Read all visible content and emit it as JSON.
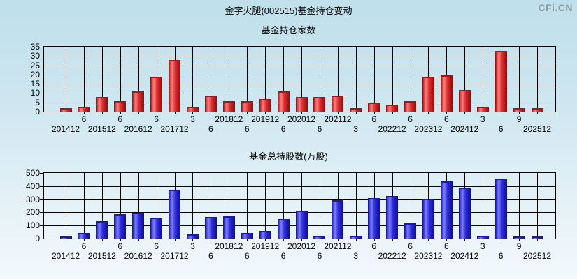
{
  "page": {
    "title": "金字火腿(002515)基金持仓变动",
    "watermark": "CFi.CN"
  },
  "chart_data": [
    {
      "type": "bar",
      "title": "基金持仓家数",
      "ylabel": "基金持仓家数",
      "ylim": [
        0,
        35
      ],
      "yticks": [
        0,
        5,
        10,
        15,
        20,
        25,
        30,
        35
      ],
      "grid": true,
      "bar_color_theme": "red",
      "bar_color": "#e03030",
      "categories": [
        "201412",
        "201506",
        "201512",
        "201606",
        "201612",
        "201706",
        "201712",
        "201803",
        "201806",
        "201812",
        "201906",
        "201912",
        "202006",
        "202012",
        "202106",
        "202112",
        "202203",
        "202206",
        "202212",
        "202306",
        "202312",
        "202406",
        "202412",
        "202503",
        "202506",
        "202509",
        "202512"
      ],
      "x_tick_display": [
        "201412",
        "6",
        "201512",
        "6",
        "201612",
        "6",
        "201712",
        "3",
        "6",
        "201812",
        "6",
        "201912",
        "6",
        "202012",
        "6",
        "202112",
        "3",
        "6",
        "202212",
        "6",
        "202312",
        "6",
        "202412",
        "3",
        "6",
        "9",
        "202512"
      ],
      "x_tick_row": [
        "lower",
        "upper",
        "lower",
        "upper",
        "lower",
        "upper",
        "lower",
        "upper",
        "lower",
        "upper",
        "lower",
        "upper",
        "lower",
        "upper",
        "lower",
        "upper",
        "lower",
        "upper",
        "lower",
        "upper",
        "lower",
        "upper",
        "lower",
        "upper",
        "lower",
        "upper",
        "lower"
      ],
      "values": [
        1,
        2,
        7,
        5,
        10,
        18,
        27,
        2,
        8,
        5,
        5,
        6,
        10,
        7,
        7,
        8,
        1,
        4,
        3,
        5,
        18,
        19,
        11,
        2,
        32,
        1,
        1
      ]
    },
    {
      "type": "bar",
      "title": "基金总持股数(万股)",
      "ylabel": "基金总持股数(万股)",
      "ylim": [
        0,
        500
      ],
      "yticks": [
        0,
        100,
        200,
        300,
        400,
        500
      ],
      "grid": true,
      "bar_color_theme": "blue",
      "bar_color": "#3030e0",
      "categories": [
        "201412",
        "201506",
        "201512",
        "201606",
        "201612",
        "201706",
        "201712",
        "201803",
        "201806",
        "201812",
        "201906",
        "201912",
        "202006",
        "202012",
        "202106",
        "202112",
        "202203",
        "202206",
        "202212",
        "202306",
        "202312",
        "202406",
        "202412",
        "202503",
        "202506",
        "202509",
        "202512"
      ],
      "x_tick_display": [
        "201412",
        "6",
        "201512",
        "6",
        "201612",
        "6",
        "201712",
        "3",
        "6",
        "201812",
        "6",
        "201912",
        "6",
        "202012",
        "6",
        "202112",
        "3",
        "6",
        "202212",
        "6",
        "202312",
        "6",
        "202412",
        "3",
        "6",
        "9",
        "202512"
      ],
      "x_tick_row": [
        "lower",
        "upper",
        "lower",
        "upper",
        "lower",
        "upper",
        "lower",
        "upper",
        "lower",
        "upper",
        "lower",
        "upper",
        "lower",
        "upper",
        "lower",
        "upper",
        "lower",
        "upper",
        "lower",
        "upper",
        "lower",
        "upper",
        "lower",
        "upper",
        "lower",
        "upper",
        "lower"
      ],
      "values": [
        5,
        30,
        125,
        175,
        185,
        150,
        360,
        20,
        155,
        160,
        30,
        50,
        140,
        200,
        10,
        280,
        10,
        300,
        315,
        105,
        295,
        425,
        380,
        10,
        445,
        3,
        3
      ]
    }
  ]
}
